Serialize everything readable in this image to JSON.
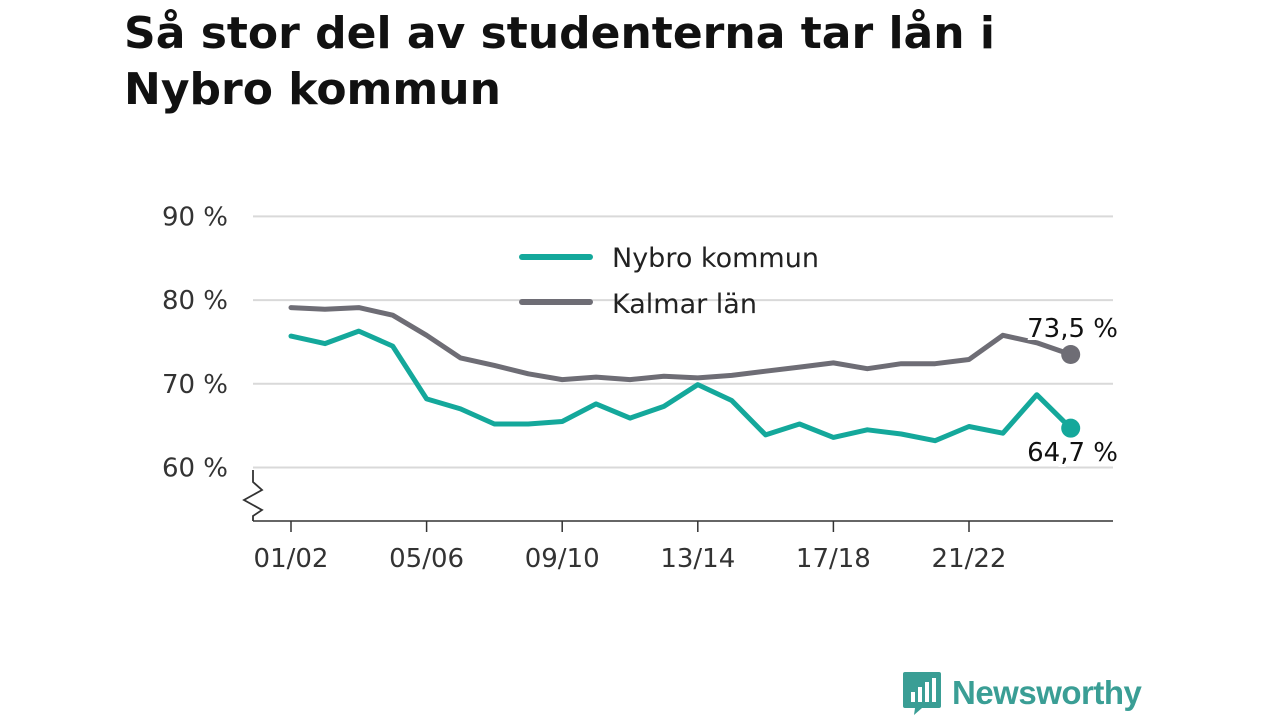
{
  "title": "Så stor del av studenterna tar lån i Nybro kommun",
  "brand": {
    "name": "Newsworthy"
  },
  "colors": {
    "nybro": "#14a89b",
    "kalmar": "#6e6d75",
    "grid": "#d9d9d9",
    "axis": "#333333",
    "brand": "#3a9e95"
  },
  "chart_data": {
    "type": "line",
    "x": [
      "01/02",
      "02/03",
      "03/04",
      "04/05",
      "05/06",
      "06/07",
      "07/08",
      "08/09",
      "09/10",
      "10/11",
      "11/12",
      "12/13",
      "13/14",
      "14/15",
      "15/16",
      "16/17",
      "17/18",
      "18/19",
      "19/20",
      "20/21",
      "21/22",
      "22/23",
      "23/24",
      "24/25"
    ],
    "x_tick_labels": [
      "01/02",
      "05/06",
      "09/10",
      "13/14",
      "17/18",
      "21/22"
    ],
    "y_tick_labels": [
      "90 %",
      "80 %",
      "70 %",
      "60 %"
    ],
    "y_ticks": [
      90,
      80,
      70,
      60
    ],
    "ylim": [
      54,
      90
    ],
    "grid": true,
    "legend": "top-center",
    "series": [
      {
        "name": "Nybro kommun",
        "color": "#14a89b",
        "values": [
          75.7,
          74.8,
          76.3,
          74.5,
          68.2,
          67.0,
          65.2,
          65.2,
          65.5,
          67.6,
          65.9,
          67.3,
          69.9,
          68.0,
          63.9,
          65.2,
          63.6,
          64.5,
          64.0,
          63.2,
          64.9,
          64.1,
          68.7,
          64.7
        ],
        "end_label": "64,7 %"
      },
      {
        "name": "Kalmar län",
        "color": "#6e6d75",
        "values": [
          79.1,
          78.9,
          79.1,
          78.2,
          75.8,
          73.1,
          72.2,
          71.2,
          70.5,
          70.8,
          70.5,
          70.9,
          70.7,
          71.0,
          71.5,
          72.0,
          72.5,
          71.8,
          72.4,
          72.4,
          72.9,
          75.8,
          74.9,
          73.5
        ],
        "end_label": "73,5 %"
      }
    ]
  }
}
